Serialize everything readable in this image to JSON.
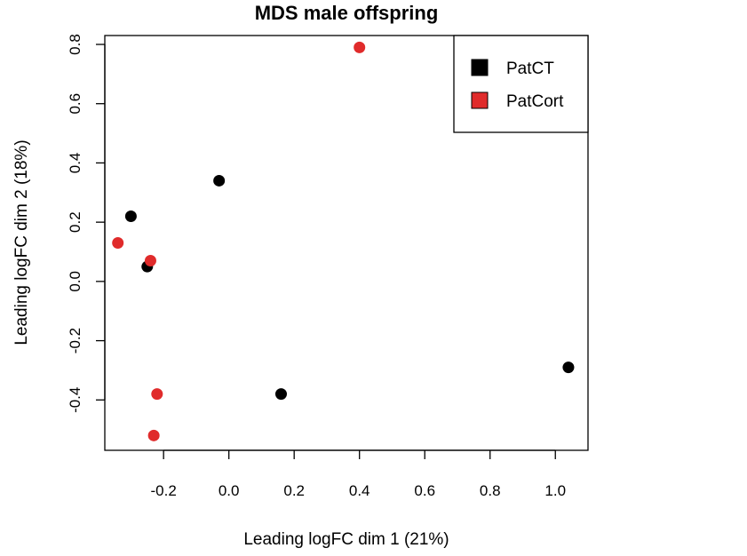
{
  "chart_data": {
    "type": "scatter",
    "title": "MDS male offspring",
    "xlabel": "Leading logFC dim 1 (21%)",
    "ylabel": "Leading logFC dim 2 (18%)",
    "xlim": [
      -0.38,
      1.1
    ],
    "ylim": [
      -0.57,
      0.83
    ],
    "xticks": [
      -0.2,
      0.0,
      0.2,
      0.4,
      0.6,
      0.8,
      1.0
    ],
    "xtick_labels": [
      "-0.2",
      "0.0",
      "0.2",
      "0.4",
      "0.6",
      "0.8",
      "1.0"
    ],
    "yticks": [
      -0.4,
      -0.2,
      0.0,
      0.2,
      0.4,
      0.6,
      0.8
    ],
    "ytick_labels": [
      "-0.4",
      "-0.2",
      "0.0",
      "0.2",
      "0.4",
      "0.6",
      "0.8"
    ],
    "grid": false,
    "legend_position": "top-right",
    "series": [
      {
        "name": "PatCT",
        "color": "#000000",
        "points": [
          {
            "x": -0.03,
            "y": 0.34
          },
          {
            "x": -0.3,
            "y": 0.22
          },
          {
            "x": -0.25,
            "y": 0.05
          },
          {
            "x": 0.16,
            "y": -0.38
          },
          {
            "x": 1.04,
            "y": -0.29
          }
        ]
      },
      {
        "name": "PatCort",
        "color": "#e02b2b",
        "points": [
          {
            "x": 0.4,
            "y": 0.79
          },
          {
            "x": -0.34,
            "y": 0.13
          },
          {
            "x": -0.24,
            "y": 0.07
          },
          {
            "x": -0.22,
            "y": -0.38
          },
          {
            "x": -0.23,
            "y": -0.52
          }
        ]
      }
    ]
  }
}
